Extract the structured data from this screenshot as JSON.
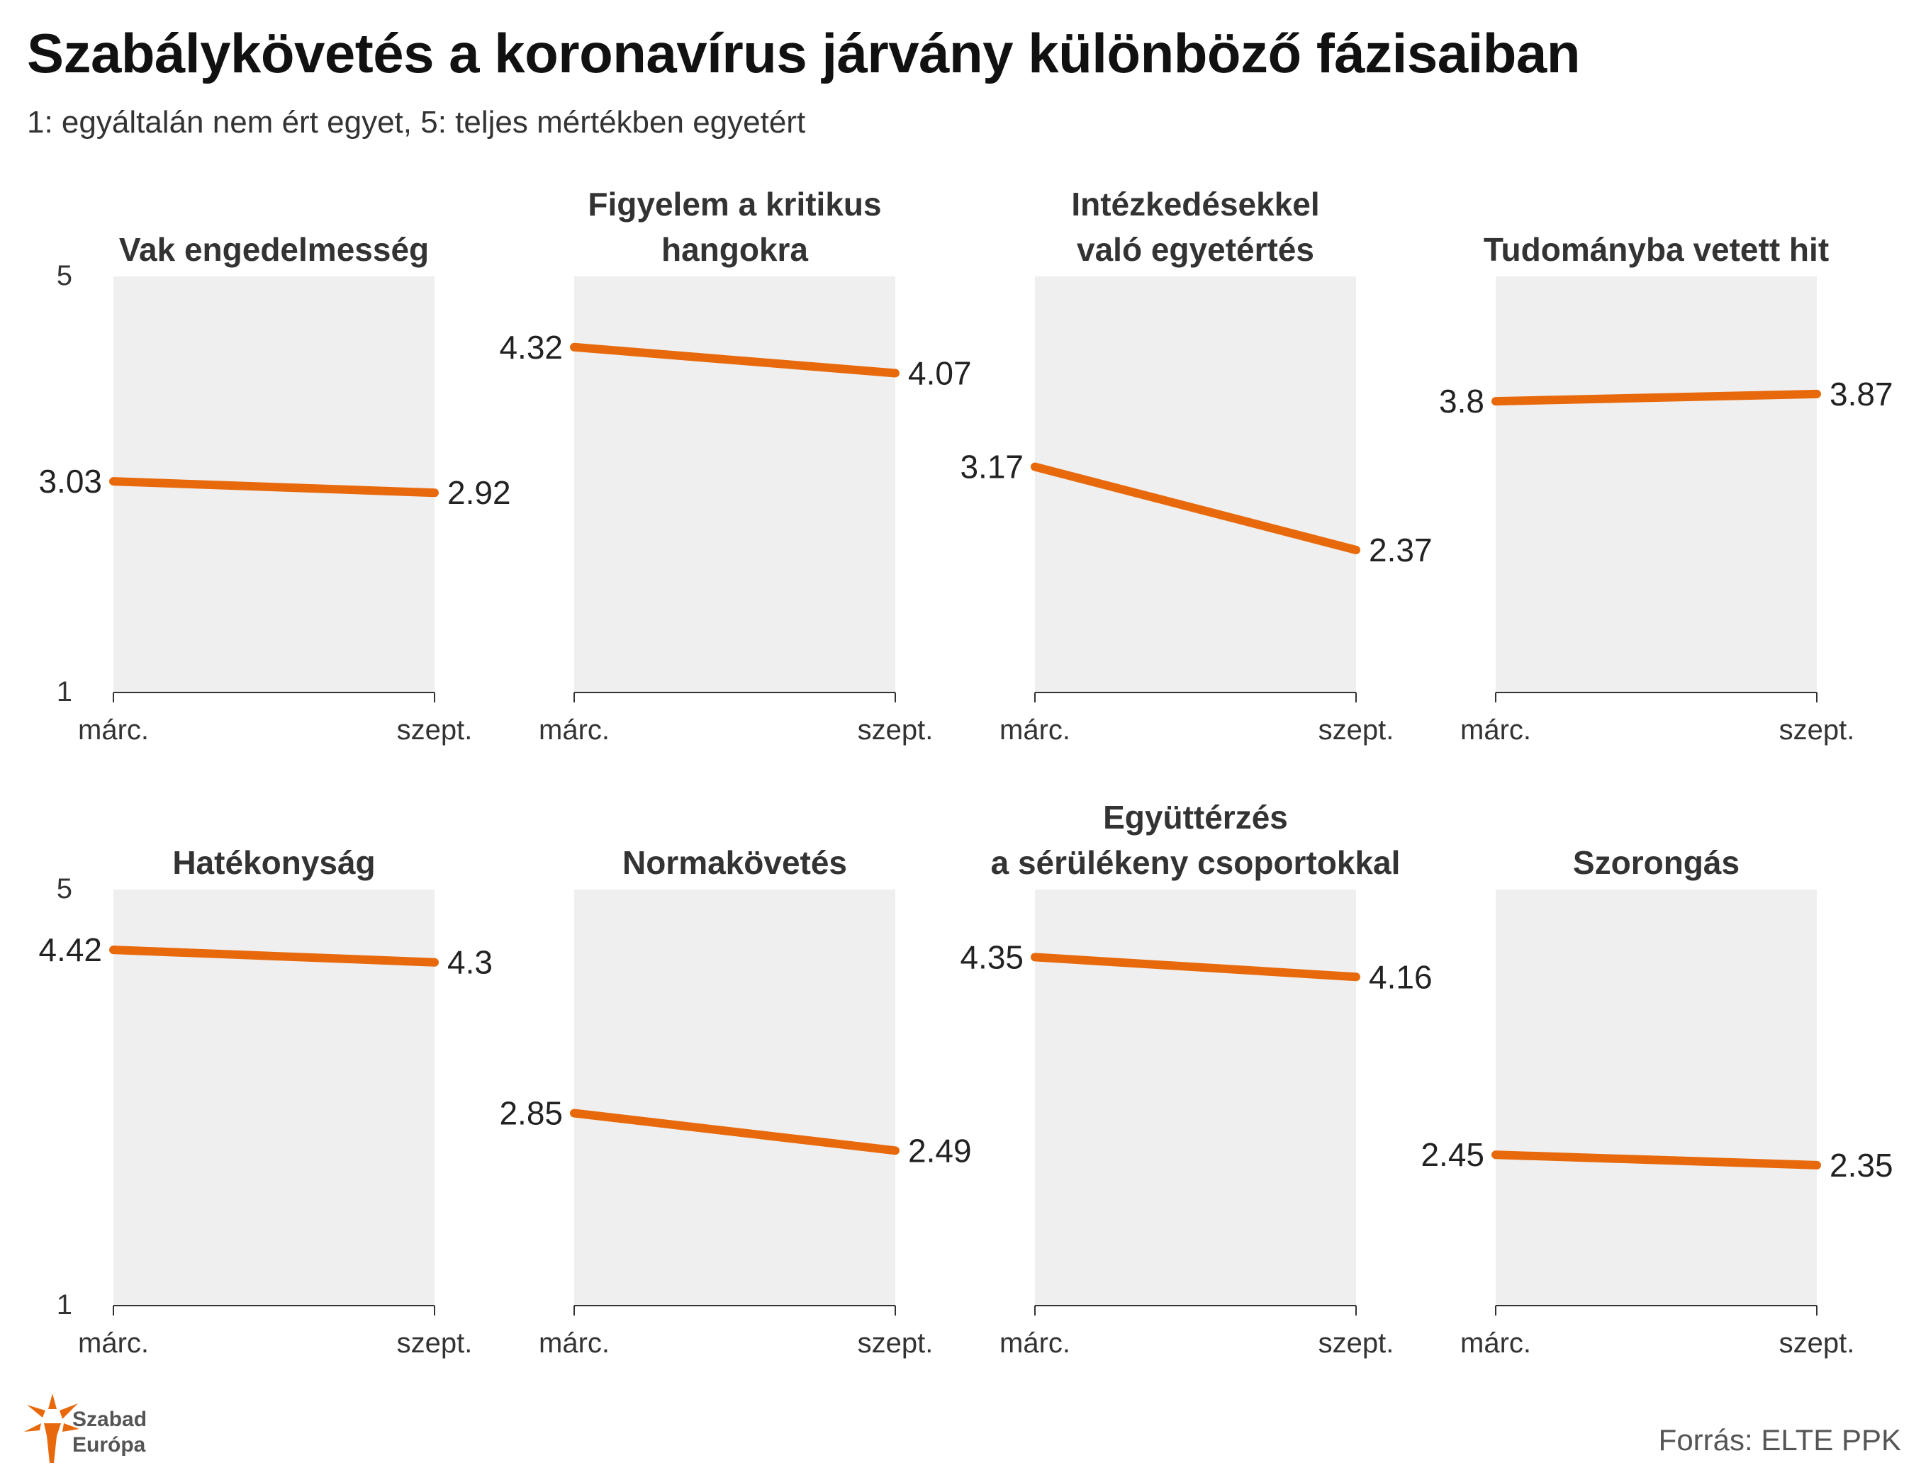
{
  "title": "Szabálykövetés a koronavírus járvány különböző fázisaiban",
  "subtitle": "1: egyáltalán nem ért egyet, 5: teljes mértékben egyetért",
  "source": "Forrás:  ELTE PPK",
  "logo": {
    "line1": "Szabad",
    "line2": "Európa"
  },
  "colors": {
    "line": "#e8690b",
    "panel_bg": "#efefef",
    "axis": "#333333"
  },
  "chart_data": {
    "type": "line",
    "x": [
      "márc.",
      "szept."
    ],
    "ylim": [
      1,
      5
    ],
    "yticks": [
      "5",
      "1"
    ],
    "panels": [
      {
        "title": [
          "Vak engedelmesség"
        ],
        "values": [
          3.03,
          2.92
        ],
        "labels": [
          "3.03",
          "2.92"
        ]
      },
      {
        "title": [
          "Figyelem a kritikus",
          "hangokra"
        ],
        "values": [
          4.32,
          4.07
        ],
        "labels": [
          "4.32",
          "4.07"
        ]
      },
      {
        "title": [
          "Intézkedésekkel",
          "való egyetértés"
        ],
        "values": [
          3.17,
          2.37
        ],
        "labels": [
          "3.17",
          "2.37"
        ]
      },
      {
        "title": [
          "Tudományba vetett hit"
        ],
        "values": [
          3.8,
          3.87
        ],
        "labels": [
          "3.8",
          "3.87"
        ]
      },
      {
        "title": [
          "Hatékonyság"
        ],
        "values": [
          4.42,
          4.3
        ],
        "labels": [
          "4.42",
          "4.3"
        ]
      },
      {
        "title": [
          "Normakövetés"
        ],
        "values": [
          2.85,
          2.49
        ],
        "labels": [
          "2.85",
          "2.49"
        ]
      },
      {
        "title": [
          "Együttérzés",
          "a sérülékeny csoportokkal"
        ],
        "values": [
          4.35,
          4.16
        ],
        "labels": [
          "4.35",
          "4.16"
        ]
      },
      {
        "title": [
          "Szorongás"
        ],
        "values": [
          2.45,
          2.35
        ],
        "labels": [
          "2.45",
          "2.35"
        ]
      }
    ]
  }
}
